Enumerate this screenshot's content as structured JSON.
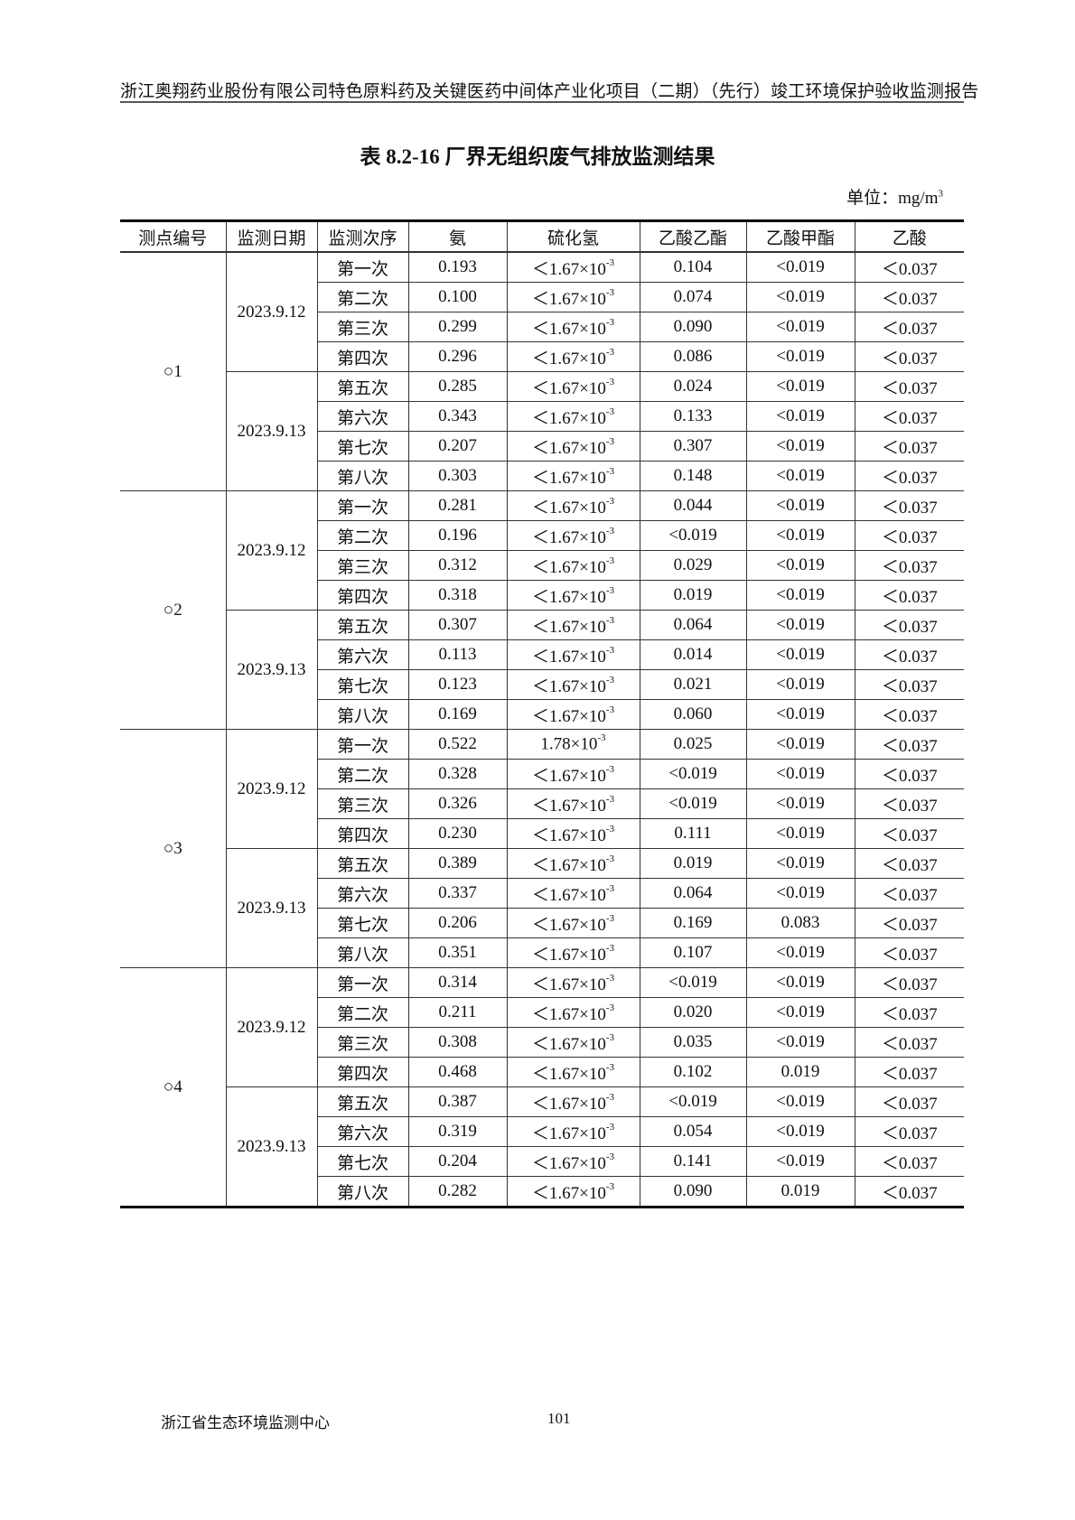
{
  "running_header": "浙江奥翔药业股份有限公司特色原料药及关键医药中间体产业化项目（二期）（先行）竣工环境保护验收监测报告",
  "title": "表 8.2-16  厂界无组织废气排放监测结果",
  "unit": {
    "label": "单位：mg/m",
    "exp": "3"
  },
  "table": {
    "headers": [
      "测点编号",
      "监测日期",
      "监测次序",
      "氨",
      "硫化氢",
      "乙酸乙酯",
      "乙酸甲酯",
      "乙酸"
    ],
    "groups": [
      {
        "point": "○1",
        "dates": [
          {
            "date": "2023.9.12",
            "rows": [
              {
                "seq": "第一次",
                "nh3": "0.193",
                "h2s": {
                  "base": "＜1.67×10",
                  "exp": "-3"
                },
                "ea": "0.104",
                "ma": "<0.019",
                "aa": "＜0.037"
              },
              {
                "seq": "第二次",
                "nh3": "0.100",
                "h2s": {
                  "base": "＜1.67×10",
                  "exp": "-3"
                },
                "ea": "0.074",
                "ma": "<0.019",
                "aa": "＜0.037"
              },
              {
                "seq": "第三次",
                "nh3": "0.299",
                "h2s": {
                  "base": "＜1.67×10",
                  "exp": "-3"
                },
                "ea": "0.090",
                "ma": "<0.019",
                "aa": "＜0.037"
              },
              {
                "seq": "第四次",
                "nh3": "0.296",
                "h2s": {
                  "base": "＜1.67×10",
                  "exp": "-3"
                },
                "ea": "0.086",
                "ma": "<0.019",
                "aa": "＜0.037"
              }
            ]
          },
          {
            "date": "2023.9.13",
            "rows": [
              {
                "seq": "第五次",
                "nh3": "0.285",
                "h2s": {
                  "base": "＜1.67×10",
                  "exp": "-3"
                },
                "ea": "0.024",
                "ma": "<0.019",
                "aa": "＜0.037"
              },
              {
                "seq": "第六次",
                "nh3": "0.343",
                "h2s": {
                  "base": "＜1.67×10",
                  "exp": "-3"
                },
                "ea": "0.133",
                "ma": "<0.019",
                "aa": "＜0.037"
              },
              {
                "seq": "第七次",
                "nh3": "0.207",
                "h2s": {
                  "base": "＜1.67×10",
                  "exp": "-3"
                },
                "ea": "0.307",
                "ma": "<0.019",
                "aa": "＜0.037"
              },
              {
                "seq": "第八次",
                "nh3": "0.303",
                "h2s": {
                  "base": "＜1.67×10",
                  "exp": "-3"
                },
                "ea": "0.148",
                "ma": "<0.019",
                "aa": "＜0.037"
              }
            ]
          }
        ]
      },
      {
        "point": "○2",
        "dates": [
          {
            "date": "2023.9.12",
            "rows": [
              {
                "seq": "第一次",
                "nh3": "0.281",
                "h2s": {
                  "base": "＜1.67×10",
                  "exp": "-3"
                },
                "ea": "0.044",
                "ma": "<0.019",
                "aa": "＜0.037"
              },
              {
                "seq": "第二次",
                "nh3": "0.196",
                "h2s": {
                  "base": "＜1.67×10",
                  "exp": "-3"
                },
                "ea": "<0.019",
                "ma": "<0.019",
                "aa": "＜0.037"
              },
              {
                "seq": "第三次",
                "nh3": "0.312",
                "h2s": {
                  "base": "＜1.67×10",
                  "exp": "-3"
                },
                "ea": "0.029",
                "ma": "<0.019",
                "aa": "＜0.037"
              },
              {
                "seq": "第四次",
                "nh3": "0.318",
                "h2s": {
                  "base": "＜1.67×10",
                  "exp": "-3"
                },
                "ea": "0.019",
                "ma": "<0.019",
                "aa": "＜0.037"
              }
            ]
          },
          {
            "date": "2023.9.13",
            "rows": [
              {
                "seq": "第五次",
                "nh3": "0.307",
                "h2s": {
                  "base": "＜1.67×10",
                  "exp": "-3"
                },
                "ea": "0.064",
                "ma": "<0.019",
                "aa": "＜0.037"
              },
              {
                "seq": "第六次",
                "nh3": "0.113",
                "h2s": {
                  "base": "＜1.67×10",
                  "exp": "-3"
                },
                "ea": "0.014",
                "ma": "<0.019",
                "aa": "＜0.037"
              },
              {
                "seq": "第七次",
                "nh3": "0.123",
                "h2s": {
                  "base": "＜1.67×10",
                  "exp": "-3"
                },
                "ea": "0.021",
                "ma": "<0.019",
                "aa": "＜0.037"
              },
              {
                "seq": "第八次",
                "nh3": "0.169",
                "h2s": {
                  "base": "＜1.67×10",
                  "exp": "-3"
                },
                "ea": "0.060",
                "ma": "<0.019",
                "aa": "＜0.037"
              }
            ]
          }
        ]
      },
      {
        "point": "○3",
        "dates": [
          {
            "date": "2023.9.12",
            "rows": [
              {
                "seq": "第一次",
                "nh3": "0.522",
                "h2s": {
                  "base": "1.78×10",
                  "exp": "-3"
                },
                "ea": "0.025",
                "ma": "<0.019",
                "aa": "＜0.037"
              },
              {
                "seq": "第二次",
                "nh3": "0.328",
                "h2s": {
                  "base": "＜1.67×10",
                  "exp": "-3"
                },
                "ea": "<0.019",
                "ma": "<0.019",
                "aa": "＜0.037"
              },
              {
                "seq": "第三次",
                "nh3": "0.326",
                "h2s": {
                  "base": "＜1.67×10",
                  "exp": "-3"
                },
                "ea": "<0.019",
                "ma": "<0.019",
                "aa": "＜0.037"
              },
              {
                "seq": "第四次",
                "nh3": "0.230",
                "h2s": {
                  "base": "＜1.67×10",
                  "exp": "-3"
                },
                "ea": "0.111",
                "ma": "<0.019",
                "aa": "＜0.037"
              }
            ]
          },
          {
            "date": "2023.9.13",
            "rows": [
              {
                "seq": "第五次",
                "nh3": "0.389",
                "h2s": {
                  "base": "＜1.67×10",
                  "exp": "-3"
                },
                "ea": "0.019",
                "ma": "<0.019",
                "aa": "＜0.037"
              },
              {
                "seq": "第六次",
                "nh3": "0.337",
                "h2s": {
                  "base": "＜1.67×10",
                  "exp": "-3"
                },
                "ea": "0.064",
                "ma": "<0.019",
                "aa": "＜0.037"
              },
              {
                "seq": "第七次",
                "nh3": "0.206",
                "h2s": {
                  "base": "＜1.67×10",
                  "exp": "-3"
                },
                "ea": "0.169",
                "ma": "0.083",
                "aa": "＜0.037"
              },
              {
                "seq": "第八次",
                "nh3": "0.351",
                "h2s": {
                  "base": "＜1.67×10",
                  "exp": "-3"
                },
                "ea": "0.107",
                "ma": "<0.019",
                "aa": "＜0.037"
              }
            ]
          }
        ]
      },
      {
        "point": "○4",
        "dates": [
          {
            "date": "2023.9.12",
            "rows": [
              {
                "seq": "第一次",
                "nh3": "0.314",
                "h2s": {
                  "base": "＜1.67×10",
                  "exp": "-3"
                },
                "ea": "<0.019",
                "ma": "<0.019",
                "aa": "＜0.037"
              },
              {
                "seq": "第二次",
                "nh3": "0.211",
                "h2s": {
                  "base": "＜1.67×10",
                  "exp": "-3"
                },
                "ea": "0.020",
                "ma": "<0.019",
                "aa": "＜0.037"
              },
              {
                "seq": "第三次",
                "nh3": "0.308",
                "h2s": {
                  "base": "＜1.67×10",
                  "exp": "-3"
                },
                "ea": "0.035",
                "ma": "<0.019",
                "aa": "＜0.037"
              },
              {
                "seq": "第四次",
                "nh3": "0.468",
                "h2s": {
                  "base": "＜1.67×10",
                  "exp": "-3"
                },
                "ea": "0.102",
                "ma": "0.019",
                "aa": "＜0.037"
              }
            ]
          },
          {
            "date": "2023.9.13",
            "rows": [
              {
                "seq": "第五次",
                "nh3": "0.387",
                "h2s": {
                  "base": "＜1.67×10",
                  "exp": "-3"
                },
                "ea": "<0.019",
                "ma": "<0.019",
                "aa": "＜0.037"
              },
              {
                "seq": "第六次",
                "nh3": "0.319",
                "h2s": {
                  "base": "＜1.67×10",
                  "exp": "-3"
                },
                "ea": "0.054",
                "ma": "<0.019",
                "aa": "＜0.037"
              },
              {
                "seq": "第七次",
                "nh3": "0.204",
                "h2s": {
                  "base": "＜1.67×10",
                  "exp": "-3"
                },
                "ea": "0.141",
                "ma": "<0.019",
                "aa": "＜0.037"
              },
              {
                "seq": "第八次",
                "nh3": "0.282",
                "h2s": {
                  "base": "＜1.67×10",
                  "exp": "-3"
                },
                "ea": "0.090",
                "ma": "0.019",
                "aa": "＜0.037"
              }
            ]
          }
        ]
      }
    ]
  },
  "footer": {
    "org": "浙江省生态环境监测中心",
    "page": "101"
  }
}
